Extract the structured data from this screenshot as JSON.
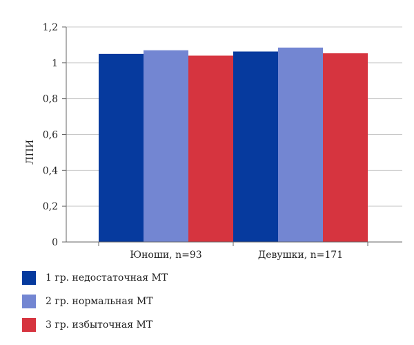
{
  "chart_data": {
    "type": "bar",
    "ylabel": "ЛПИ",
    "xlabel": "",
    "ylim": [
      0,
      1.2
    ],
    "yticks": [
      "0",
      "0,2",
      "0,4",
      "0,6",
      "0,8",
      "1",
      "1,2"
    ],
    "yticks_values": [
      0,
      0.2,
      0.4,
      0.6,
      0.8,
      1.0,
      1.2
    ],
    "grid": true,
    "legend_position": "bottom-left",
    "categories": [
      "Юноши, n=93",
      "Девушки, n=171"
    ],
    "series": [
      {
        "name": "1 гр. недостаточная МТ",
        "color": "#063a9e",
        "values": [
          1.05,
          1.063
        ]
      },
      {
        "name": "2 гр. нормальная МТ",
        "color": "#7386d2",
        "values": [
          1.07,
          1.085
        ]
      },
      {
        "name": "3 гр. избыточная МТ",
        "color": "#d6343f",
        "values": [
          1.04,
          1.053
        ]
      }
    ]
  }
}
